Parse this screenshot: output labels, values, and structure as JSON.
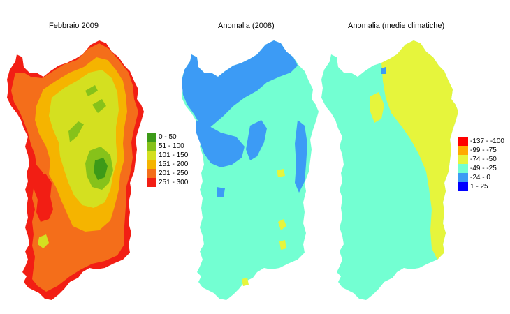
{
  "panels": [
    {
      "title": "Febbraio 2009",
      "legend": [
        {
          "label": "0 - 50",
          "color": "#3c9a18"
        },
        {
          "label": "51 - 100",
          "color": "#86c21a"
        },
        {
          "label": "101 - 150",
          "color": "#d4e020"
        },
        {
          "label": "151 - 200",
          "color": "#f5b400"
        },
        {
          "label": "201 - 250",
          "color": "#f46e1a"
        },
        {
          "label": "251 - 300",
          "color": "#f21e14"
        }
      ]
    },
    {
      "title": "Anomalia (2008)"
    },
    {
      "title": "Anomalia (medie climatiche)",
      "legend": [
        {
          "label": "-137 - -100",
          "color": "#ff0000"
        },
        {
          "label": "-99 - -75",
          "color": "#ffaa00"
        },
        {
          "label": "-74 - -50",
          "color": "#e6f53c"
        },
        {
          "label": "-49 - -25",
          "color": "#73ffd2"
        },
        {
          "label": "-24 - 0",
          "color": "#3c9bf5"
        },
        {
          "label": "1 - 25",
          "color": "#0000ff"
        }
      ]
    }
  ],
  "map_colors": {
    "p1_outer": "#f21e14",
    "p1_base": "#f46e1a",
    "p1_mid": "#f5b400",
    "p1_inner": "#d4e020",
    "p1_high": "#86c21a",
    "p1_peak": "#3c9a18",
    "p2_base": "#73ffd2",
    "p2_patch": "#3c9bf5",
    "p2_spot": "#e6f53c",
    "p3_base": "#73ffd2",
    "p3_east": "#e6f53c",
    "p3_patch": "#3c9bf5"
  }
}
